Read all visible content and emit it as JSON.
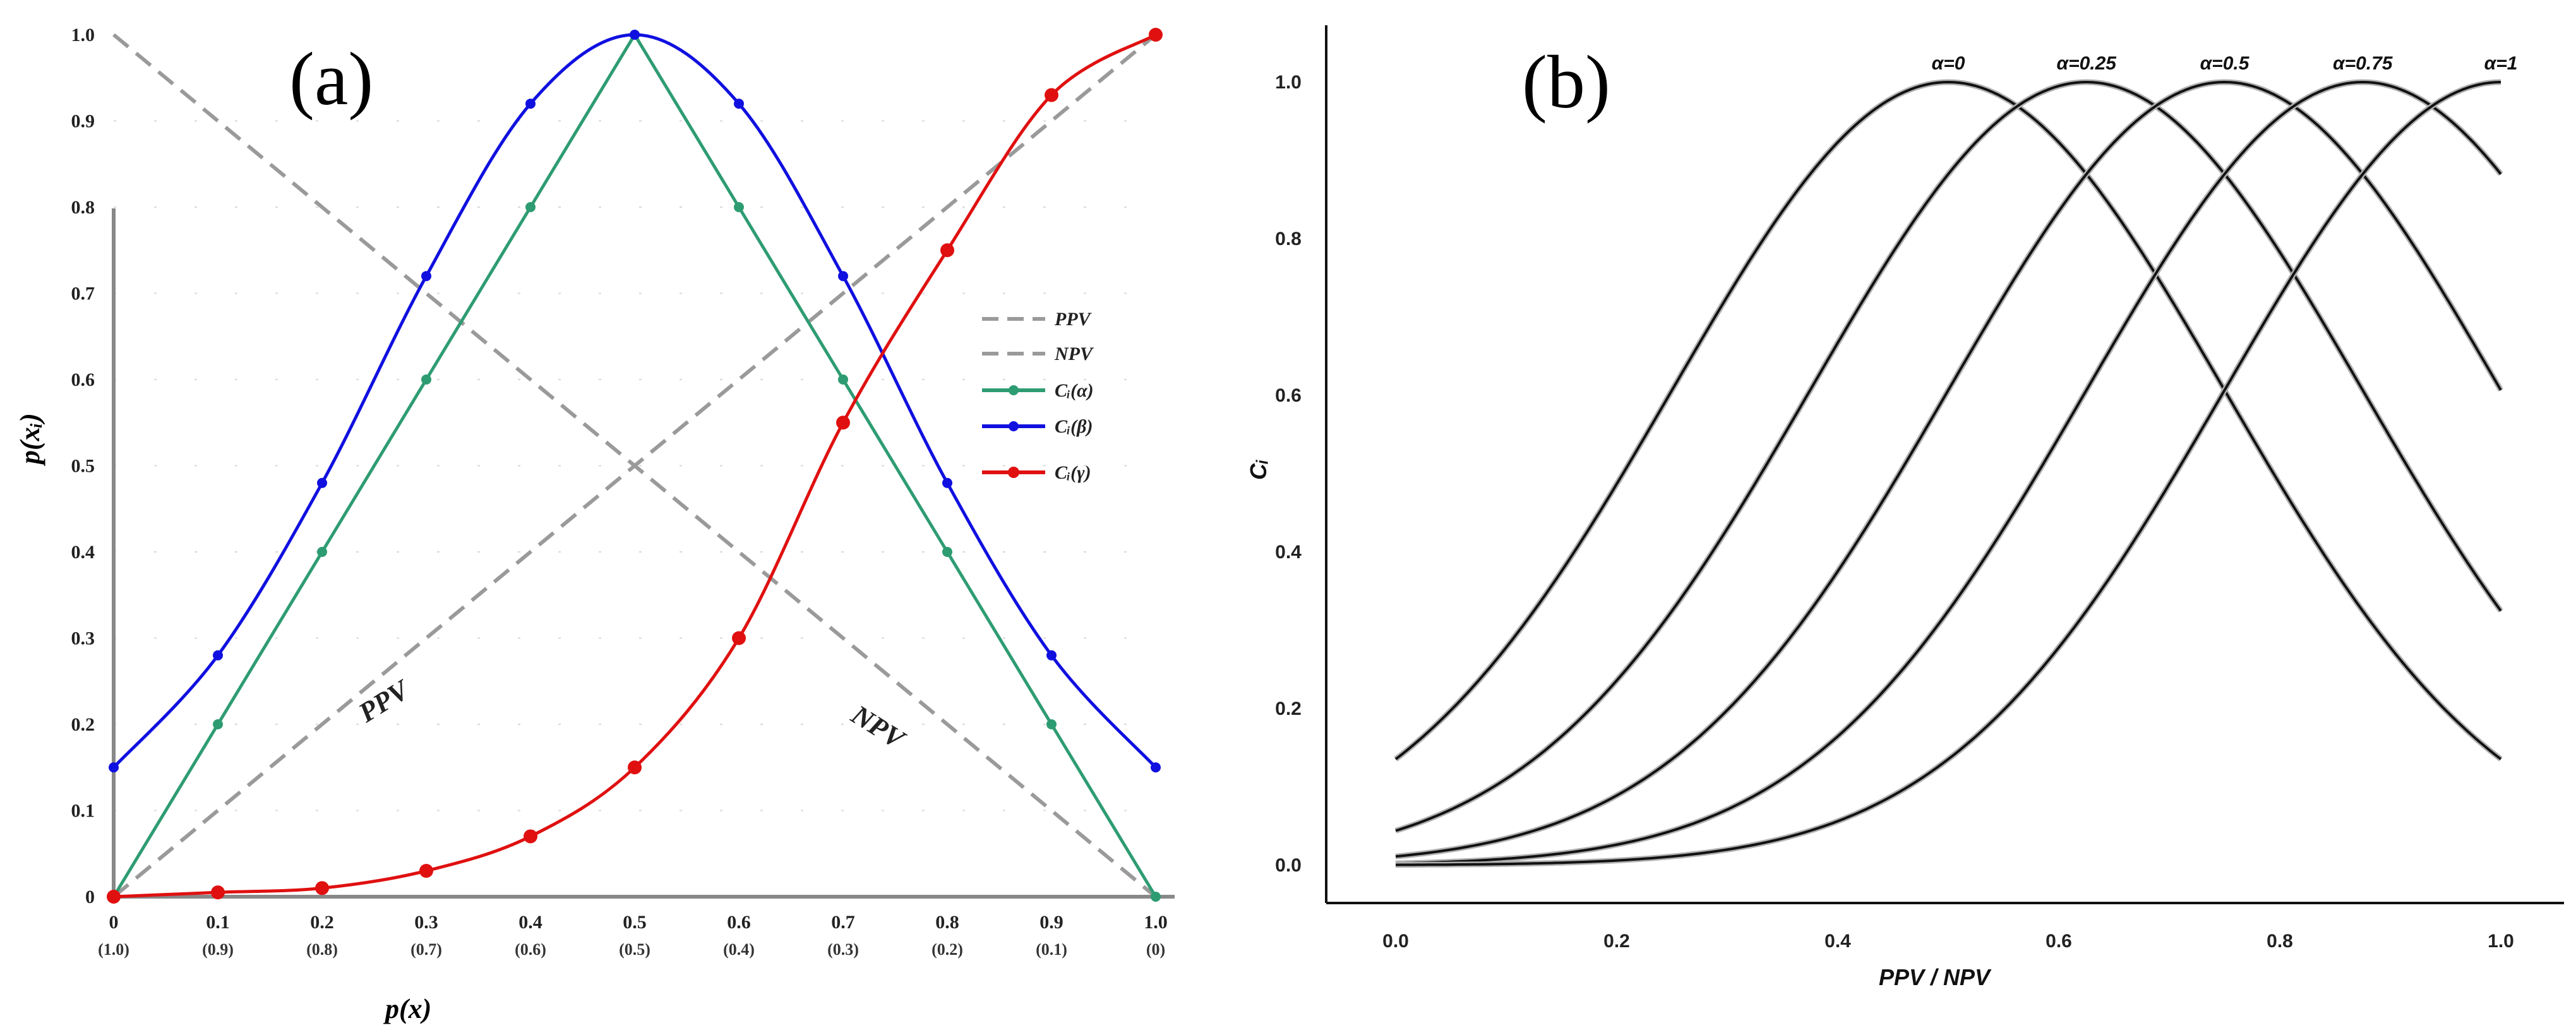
{
  "chart_data": [
    {
      "panel_label": "(a)",
      "type": "line",
      "xlabel": "p(x)",
      "ylabel": "p(xᵢ)",
      "xlim": [
        0,
        1
      ],
      "ylim": [
        0,
        1
      ],
      "x_ticks": [
        "0",
        "0.1",
        "0.2",
        "0.3",
        "0.4",
        "0.5",
        "0.6",
        "0.7",
        "0.8",
        "0.9",
        "1.0"
      ],
      "x_subticks": [
        "(1.0)",
        "(0.9)",
        "(0.8)",
        "(0.7)",
        "(0.6)",
        "(0.5)",
        "(0.4)",
        "(0.3)",
        "(0.2)",
        "(0.1)",
        "(0)"
      ],
      "y_ticks": [
        "0",
        "0.1",
        "0.2",
        "0.3",
        "0.4",
        "0.5",
        "0.6",
        "0.7",
        "0.8",
        "0.9",
        "1.0"
      ],
      "x": [
        0,
        0.1,
        0.2,
        0.3,
        0.4,
        0.5,
        0.6,
        0.7,
        0.8,
        0.9,
        1.0
      ],
      "series": [
        {
          "name": "PPV",
          "style": "dashed",
          "color": "#9a9a9a",
          "values": [
            0,
            0.1,
            0.2,
            0.3,
            0.4,
            0.5,
            0.6,
            0.7,
            0.8,
            0.9,
            1.0
          ]
        },
        {
          "name": "NPV",
          "style": "dashed",
          "color": "#9a9a9a",
          "values": [
            1.0,
            0.9,
            0.8,
            0.7,
            0.6,
            0.5,
            0.4,
            0.3,
            0.2,
            0.1,
            0
          ]
        },
        {
          "name": "Cᵢ(α)",
          "style": "solid",
          "color": "#2e9c72",
          "values": [
            0,
            0.2,
            0.4,
            0.6,
            0.8,
            1.0,
            0.8,
            0.6,
            0.4,
            0.2,
            0
          ]
        },
        {
          "name": "Cᵢ(β)",
          "style": "solid",
          "color": "#1010e0",
          "values": [
            0.15,
            0.28,
            0.48,
            0.72,
            0.92,
            1.0,
            0.92,
            0.72,
            0.48,
            0.28,
            0.15
          ]
        },
        {
          "name": "Cᵢ(γ)",
          "style": "solid",
          "color": "#e01010",
          "values": [
            0,
            0.005,
            0.01,
            0.03,
            0.07,
            0.15,
            0.3,
            0.55,
            0.75,
            0.93,
            1.0
          ]
        }
      ],
      "annotations": [
        "PPV",
        "NPV"
      ]
    },
    {
      "panel_label": "(b)",
      "type": "line",
      "xlabel": "PPV / NPV",
      "ylabel": "Cᵢ",
      "xlim": [
        0,
        1
      ],
      "ylim": [
        0,
        1
      ],
      "x_ticks": [
        "0.0",
        "0.2",
        "0.4",
        "0.6",
        "0.8",
        "1.0"
      ],
      "y_ticks": [
        "0.0",
        "0.2",
        "0.4",
        "0.6",
        "0.8",
        "1.0"
      ],
      "curve_model": "exp(-8*(x-peak)^2)",
      "series": [
        {
          "name": "α=0",
          "peak": 0.5,
          "color": "#111111"
        },
        {
          "name": "α=0.25",
          "peak": 0.625,
          "color": "#111111"
        },
        {
          "name": "α=0.5",
          "peak": 0.75,
          "color": "#111111"
        },
        {
          "name": "α=0.75",
          "peak": 0.875,
          "color": "#111111"
        },
        {
          "name": "α=1",
          "peak": 1.0,
          "color": "#111111"
        }
      ]
    }
  ]
}
